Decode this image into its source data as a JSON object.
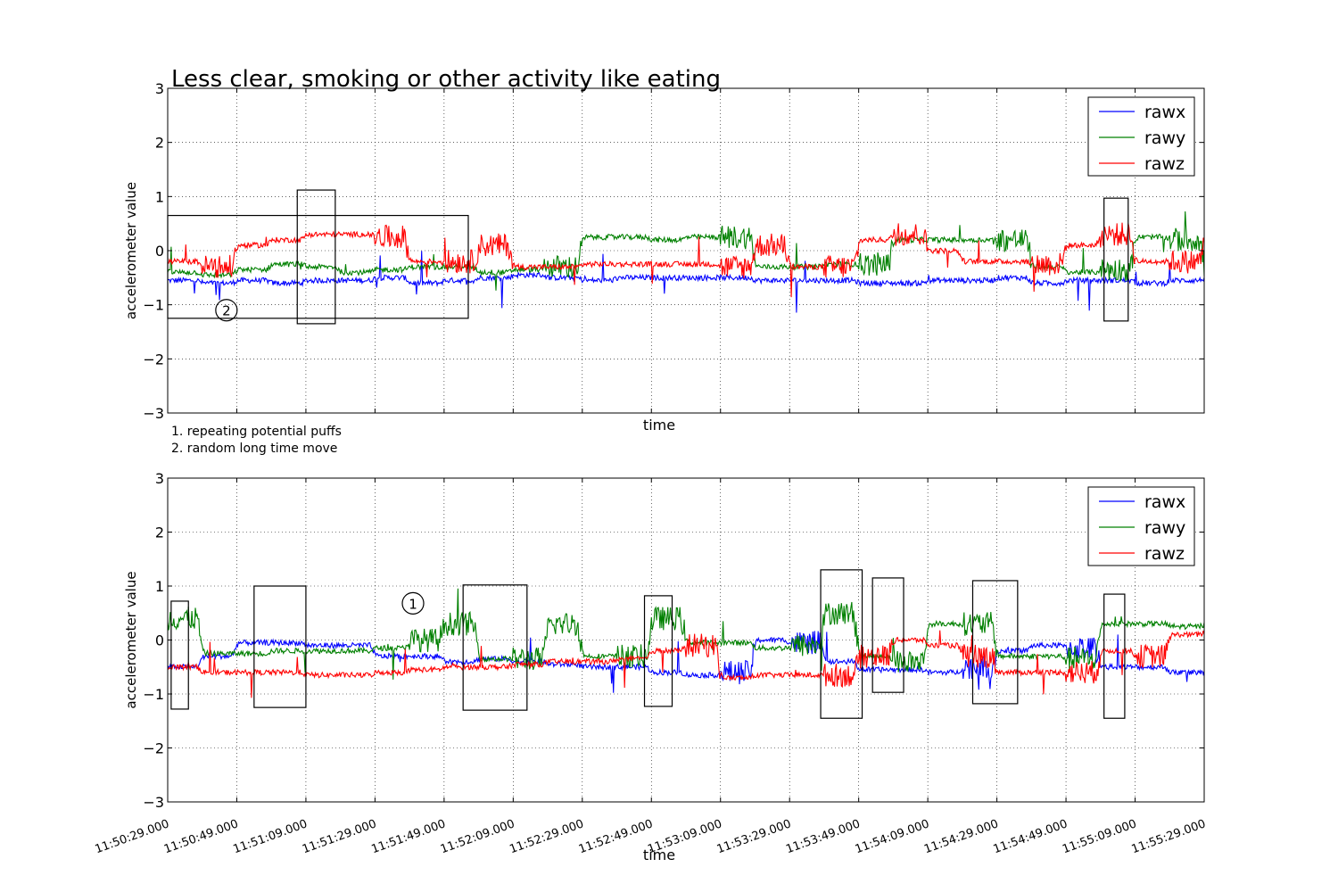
{
  "figure": {
    "title": "Less clear, smoking or other activity like eating",
    "notes": [
      "1. repeating potential puffs",
      "2. random long time move"
    ]
  },
  "colors": {
    "rawx": "#0000ff",
    "rawy": "#008000",
    "rawz": "#ff0000"
  },
  "chart_data": [
    {
      "type": "line",
      "title": "Less clear, smoking or other activity like eating",
      "xlabel": "time",
      "ylabel": "accelerometer value",
      "x_range": [
        "11:50:29.000",
        "11:55:29.000"
      ],
      "ylim": [
        -3,
        3
      ],
      "yticks": [
        "3",
        "2",
        "1",
        "0",
        "−1",
        "−2",
        "−3"
      ],
      "grid": true,
      "legend": "top-right",
      "series": [
        {
          "name": "rawx",
          "color": "#0000ff",
          "x": [
            "11:50:29",
            "11:50:39",
            "11:50:49",
            "11:50:59",
            "11:51:09",
            "11:51:19",
            "11:51:29",
            "11:51:39",
            "11:51:49",
            "11:51:59",
            "11:52:09",
            "11:52:19",
            "11:52:29",
            "11:52:39",
            "11:52:49",
            "11:52:59",
            "11:53:09",
            "11:53:19",
            "11:53:29",
            "11:53:39",
            "11:53:49",
            "11:53:59",
            "11:54:09",
            "11:54:19",
            "11:54:29",
            "11:54:39",
            "11:54:49",
            "11:54:59",
            "11:55:09",
            "11:55:19",
            "11:55:29"
          ],
          "values": [
            -0.55,
            -0.6,
            -0.55,
            -0.6,
            -0.55,
            -0.55,
            -0.5,
            -0.6,
            -0.55,
            -0.5,
            -0.45,
            -0.5,
            -0.55,
            -0.5,
            -0.5,
            -0.5,
            -0.5,
            -0.55,
            -0.55,
            -0.55,
            -0.6,
            -0.6,
            -0.55,
            -0.55,
            -0.5,
            -0.6,
            -0.55,
            -0.55,
            -0.6,
            -0.55,
            -0.5
          ]
        },
        {
          "name": "rawy",
          "color": "#008000",
          "x": [
            "11:50:29",
            "11:50:39",
            "11:50:49",
            "11:50:59",
            "11:51:09",
            "11:51:19",
            "11:51:29",
            "11:51:39",
            "11:51:49",
            "11:51:59",
            "11:52:09",
            "11:52:19",
            "11:52:29",
            "11:52:39",
            "11:52:49",
            "11:52:59",
            "11:53:09",
            "11:53:19",
            "11:53:29",
            "11:53:39",
            "11:53:49",
            "11:53:59",
            "11:54:09",
            "11:54:19",
            "11:54:29",
            "11:54:39",
            "11:54:49",
            "11:54:59",
            "11:55:09",
            "11:55:19",
            "11:55:29"
          ],
          "values": [
            -0.4,
            -0.45,
            -0.35,
            -0.25,
            -0.3,
            -0.4,
            -0.35,
            -0.3,
            -0.3,
            -0.4,
            -0.35,
            -0.3,
            0.25,
            0.25,
            0.2,
            0.25,
            0.25,
            -0.3,
            -0.3,
            -0.25,
            -0.25,
            0.2,
            0.2,
            0.2,
            0.2,
            -0.3,
            -0.4,
            -0.35,
            0.25,
            0.2,
            -0.4
          ]
        },
        {
          "name": "rawz",
          "color": "#ff0000",
          "x": [
            "11:50:29",
            "11:50:39",
            "11:50:49",
            "11:50:59",
            "11:51:09",
            "11:51:19",
            "11:51:29",
            "11:51:39",
            "11:51:49",
            "11:51:59",
            "11:52:09",
            "11:52:19",
            "11:52:29",
            "11:52:39",
            "11:52:49",
            "11:52:59",
            "11:53:09",
            "11:53:19",
            "11:53:29",
            "11:53:39",
            "11:53:49",
            "11:53:59",
            "11:54:09",
            "11:54:19",
            "11:54:29",
            "11:54:39",
            "11:54:49",
            "11:54:59",
            "11:55:09",
            "11:55:19",
            "11:55:29"
          ],
          "values": [
            -0.2,
            -0.3,
            0.1,
            0.2,
            0.3,
            0.3,
            0.25,
            -0.2,
            -0.2,
            0.1,
            -0.3,
            -0.3,
            -0.25,
            -0.25,
            -0.25,
            -0.25,
            -0.3,
            0.1,
            -0.3,
            -0.3,
            0.2,
            0.3,
            0.0,
            -0.2,
            -0.2,
            -0.25,
            0.1,
            0.3,
            -0.2,
            -0.2,
            0.2
          ]
        }
      ]
    },
    {
      "type": "line",
      "xlabel": "time",
      "ylabel": "accelerometer value",
      "x_range": [
        "11:50:29.000",
        "11:55:29.000"
      ],
      "xticks": [
        "11:50:29.000",
        "11:50:49.000",
        "11:51:09.000",
        "11:51:29.000",
        "11:51:49.000",
        "11:52:09.000",
        "11:52:29.000",
        "11:52:49.000",
        "11:53:09.000",
        "11:53:29.000",
        "11:53:49.000",
        "11:54:09.000",
        "11:54:29.000",
        "11:54:49.000",
        "11:55:09.000",
        "11:55:29.000"
      ],
      "ylim": [
        -3,
        3
      ],
      "yticks": [
        "3",
        "2",
        "1",
        "0",
        "−1",
        "−2",
        "−3"
      ],
      "grid": true,
      "legend": "top-right",
      "series": [
        {
          "name": "rawx",
          "color": "#0000ff",
          "x": [
            "11:50:29",
            "11:50:39",
            "11:50:49",
            "11:50:59",
            "11:51:09",
            "11:51:19",
            "11:51:29",
            "11:51:39",
            "11:51:49",
            "11:51:59",
            "11:52:09",
            "11:52:19",
            "11:52:29",
            "11:52:39",
            "11:52:49",
            "11:52:59",
            "11:53:09",
            "11:53:19",
            "11:53:29",
            "11:53:39",
            "11:53:49",
            "11:53:59",
            "11:54:09",
            "11:54:19",
            "11:54:29",
            "11:54:39",
            "11:54:49",
            "11:54:59",
            "11:55:09",
            "11:55:19",
            "11:55:29"
          ],
          "values": [
            -0.5,
            -0.3,
            -0.05,
            -0.05,
            -0.1,
            -0.1,
            -0.3,
            -0.3,
            -0.4,
            -0.35,
            -0.4,
            -0.45,
            -0.5,
            -0.5,
            -0.6,
            -0.65,
            -0.6,
            0.0,
            -0.05,
            -0.4,
            -0.55,
            -0.55,
            -0.6,
            -0.5,
            -0.2,
            -0.1,
            -0.15,
            -0.5,
            -0.5,
            -0.6,
            -0.6
          ]
        },
        {
          "name": "rawy",
          "color": "#008000",
          "x": [
            "11:50:29",
            "11:50:39",
            "11:50:49",
            "11:50:59",
            "11:51:09",
            "11:51:19",
            "11:51:29",
            "11:51:39",
            "11:51:49",
            "11:51:59",
            "11:52:09",
            "11:52:19",
            "11:52:29",
            "11:52:39",
            "11:52:49",
            "11:52:59",
            "11:53:09",
            "11:53:19",
            "11:53:29",
            "11:53:39",
            "11:53:49",
            "11:53:59",
            "11:54:09",
            "11:54:19",
            "11:54:29",
            "11:54:39",
            "11:54:49",
            "11:54:59",
            "11:55:09",
            "11:55:19",
            "11:55:29"
          ],
          "values": [
            0.4,
            -0.25,
            -0.25,
            -0.2,
            -0.2,
            -0.2,
            -0.15,
            0.0,
            0.3,
            -0.35,
            -0.35,
            0.3,
            -0.3,
            -0.3,
            0.4,
            -0.05,
            -0.05,
            -0.15,
            -0.1,
            0.5,
            -0.3,
            -0.4,
            0.3,
            0.3,
            -0.3,
            -0.3,
            -0.35,
            0.3,
            0.3,
            0.25,
            0.3
          ]
        },
        {
          "name": "rawz",
          "color": "#ff0000",
          "x": [
            "11:50:29",
            "11:50:39",
            "11:50:49",
            "11:50:59",
            "11:51:09",
            "11:51:19",
            "11:51:29",
            "11:51:39",
            "11:51:49",
            "11:51:59",
            "11:52:09",
            "11:52:19",
            "11:52:29",
            "11:52:39",
            "11:52:49",
            "11:52:59",
            "11:53:09",
            "11:53:19",
            "11:53:29",
            "11:53:39",
            "11:53:49",
            "11:53:59",
            "11:54:09",
            "11:54:19",
            "11:54:29",
            "11:54:39",
            "11:54:49",
            "11:54:59",
            "11:55:09",
            "11:55:19",
            "11:55:29"
          ],
          "values": [
            -0.5,
            -0.6,
            -0.6,
            -0.6,
            -0.65,
            -0.65,
            -0.6,
            -0.55,
            -0.5,
            -0.5,
            -0.45,
            -0.4,
            -0.4,
            -0.35,
            -0.2,
            -0.1,
            -0.7,
            -0.65,
            -0.65,
            -0.65,
            -0.3,
            0.0,
            -0.1,
            -0.3,
            -0.6,
            -0.6,
            -0.6,
            -0.2,
            -0.3,
            0.1,
            0.15
          ]
        }
      ]
    }
  ]
}
